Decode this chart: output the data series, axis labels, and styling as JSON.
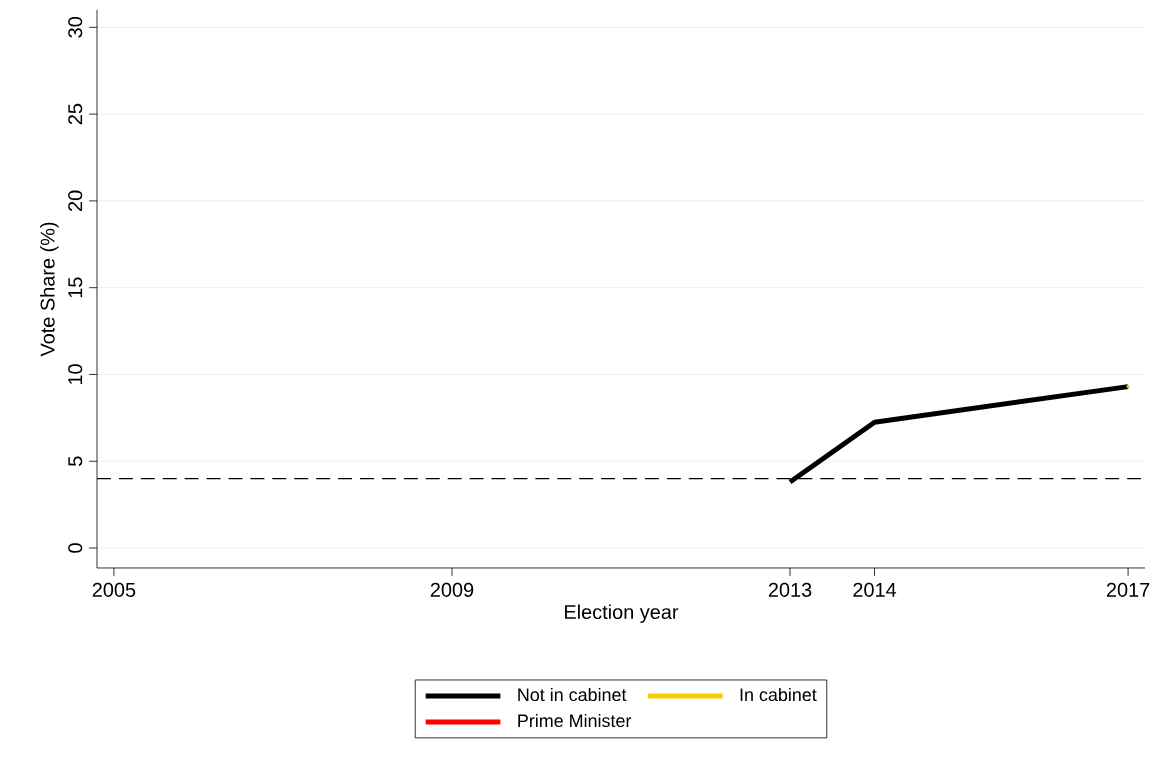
{
  "chart_data": {
    "type": "line",
    "xlabel": "Election year",
    "ylabel": "Vote Share (%)",
    "x": [
      2013,
      2014,
      2017
    ],
    "series": [
      {
        "name": "Not in cabinet",
        "color": "#000000",
        "values": [
          3.8,
          7.25,
          9.3
        ]
      },
      {
        "name": "In cabinet",
        "color": "#f5cc00",
        "values": [
          null,
          null,
          9.3
        ]
      },
      {
        "name": "Prime Minister",
        "color": "#ff0000",
        "values": [
          null,
          null,
          null
        ]
      }
    ],
    "xlim": [
      2004.8,
      2017.2
    ],
    "xticks": [
      2005,
      2009,
      2013,
      2014,
      2017
    ],
    "ylim": [
      -1.15,
      31
    ],
    "yticks": [
      0,
      5,
      10,
      15,
      20,
      25,
      30
    ],
    "ref_lines": [
      {
        "axis": "y",
        "value": 4,
        "color": "#000000",
        "line_style": "dashed"
      }
    ],
    "grid": "y",
    "legend": "bottom",
    "marker": "none",
    "line_style": "solid"
  }
}
